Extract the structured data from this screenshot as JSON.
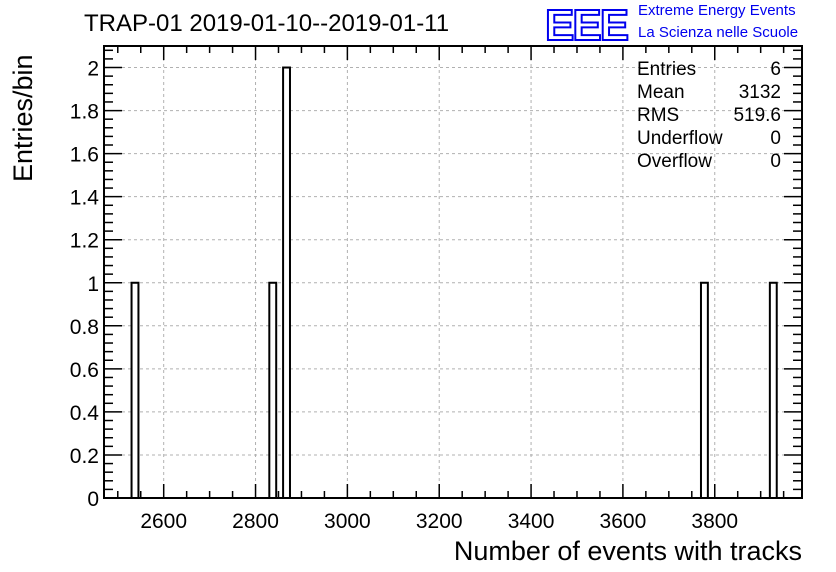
{
  "header": {
    "title": "TRAP-01 2019-01-10--2019-01-11",
    "logo_text": "EEE",
    "logo_line1": "Extreme Energy Events",
    "logo_line2": "La Scienza nelle Scuole"
  },
  "stats": [
    {
      "label": "Entries",
      "value": "6"
    },
    {
      "label": "Mean",
      "value": "3132"
    },
    {
      "label": "RMS",
      "value": "519.6"
    },
    {
      "label": "Underflow",
      "value": "0"
    },
    {
      "label": "Overflow",
      "value": "0"
    }
  ],
  "colors": {
    "logo": "#0000ee",
    "grid": "#b0b0b0",
    "bars": "#000000"
  },
  "chart_data": {
    "type": "bar",
    "title": "TRAP-01 2019-01-10--2019-01-11",
    "xlabel": "Number of events with tracks",
    "ylabel": "Entries/bin",
    "xlim": [
      2470,
      3990
    ],
    "ylim": [
      0,
      2.1
    ],
    "xticks": [
      2600,
      2800,
      3000,
      3200,
      3400,
      3600,
      3800
    ],
    "yticks": [
      0,
      0.2,
      0.4,
      0.6,
      0.8,
      1,
      1.2,
      1.4,
      1.6,
      1.8,
      2
    ],
    "xtick_labels": [
      "2600",
      "2800",
      "3000",
      "3200",
      "3400",
      "3600",
      "3800"
    ],
    "ytick_labels": [
      "0",
      "0.2",
      "0.4",
      "0.6",
      "0.8",
      "1",
      "1.2",
      "1.4",
      "1.6",
      "1.8",
      "2"
    ],
    "grid": true,
    "bins": [
      {
        "x0": 2530,
        "x1": 2545,
        "count": 1
      },
      {
        "x0": 2830,
        "x1": 2845,
        "count": 1
      },
      {
        "x0": 2860,
        "x1": 2875,
        "count": 2
      },
      {
        "x0": 3770,
        "x1": 3785,
        "count": 1
      },
      {
        "x0": 3920,
        "x1": 3935,
        "count": 1
      }
    ]
  }
}
